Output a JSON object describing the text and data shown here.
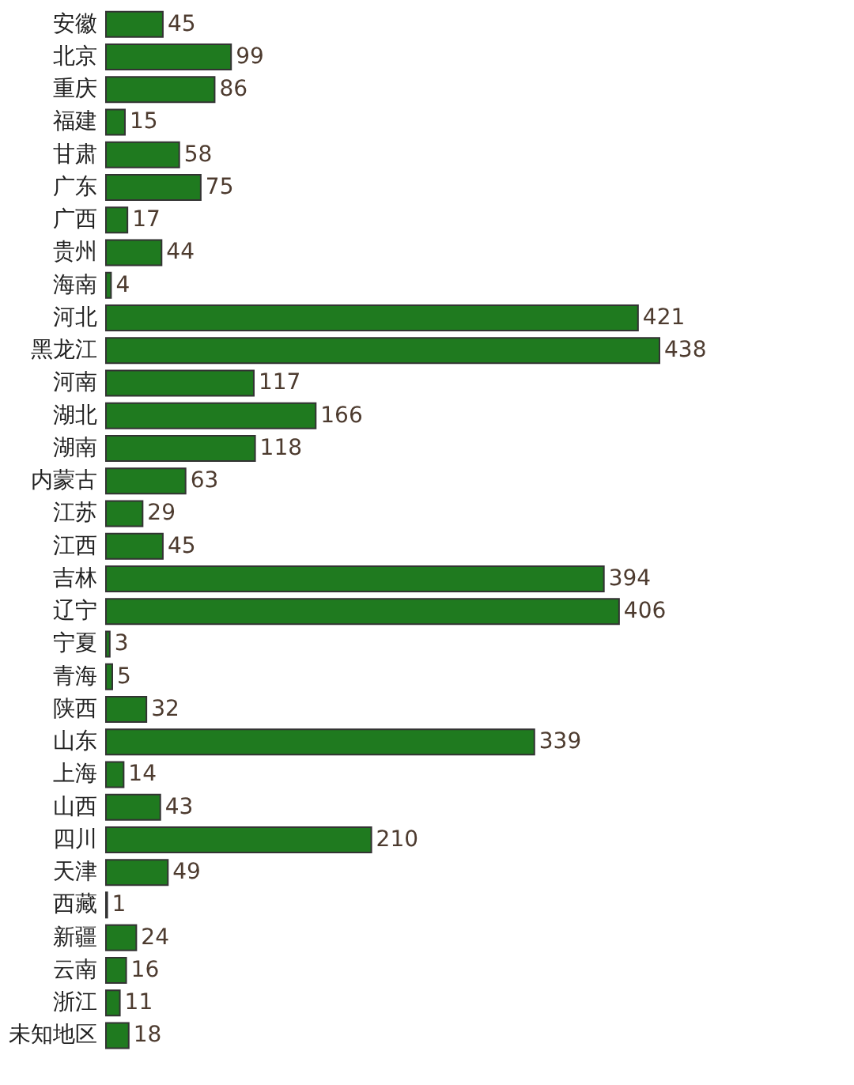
{
  "chart_data": {
    "type": "bar",
    "orientation": "horizontal",
    "categories": [
      "安徽",
      "北京",
      "重庆",
      "福建",
      "甘肃",
      "广东",
      "广西",
      "贵州",
      "海南",
      "河北",
      "黑龙江",
      "河南",
      "湖北",
      "湖南",
      "内蒙古",
      "江苏",
      "江西",
      "吉林",
      "辽宁",
      "宁夏",
      "青海",
      "陕西",
      "山东",
      "上海",
      "山西",
      "四川",
      "天津",
      "西藏",
      "新疆",
      "云南",
      "浙江",
      "未知地区"
    ],
    "values": [
      45,
      99,
      86,
      15,
      58,
      75,
      17,
      44,
      4,
      421,
      438,
      117,
      166,
      118,
      63,
      29,
      45,
      394,
      406,
      3,
      5,
      32,
      339,
      14,
      43,
      210,
      49,
      1,
      24,
      16,
      11,
      18
    ],
    "color": "#1f7a1f",
    "data_labels": true,
    "grid": false,
    "tick_labels": "y"
  }
}
